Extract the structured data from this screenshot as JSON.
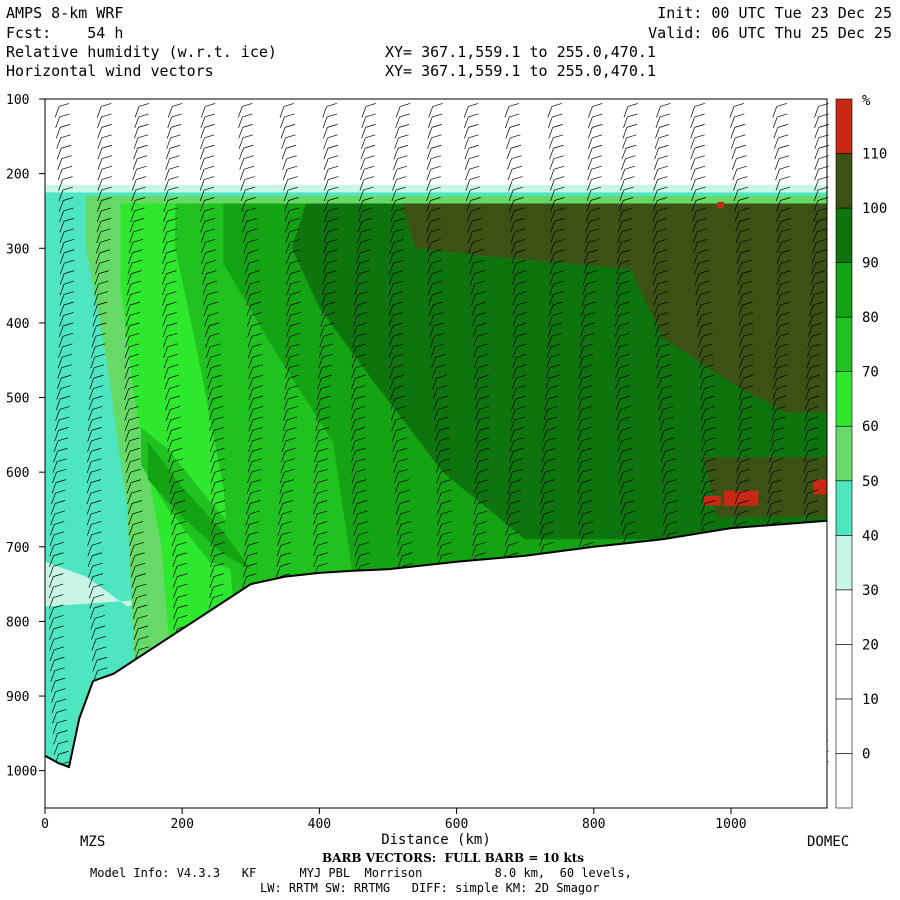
{
  "header": {
    "model": "AMPS 8-km WRF",
    "fcst_label": "Fcst:",
    "fcst_value": "54 h",
    "field1": "Relative humidity (w.r.t. ice)",
    "field2": "Horizontal wind vectors",
    "init": "Init: 00 UTC Tue 23 Dec 25",
    "valid": "Valid: 06 UTC Thu 25 Dec 25",
    "xy1": "XY= 367.1,559.1 to 255.0,470.1",
    "xy2": "XY= 367.1,559.1 to 255.0,470.1"
  },
  "footer": {
    "barb_note": "BARB VECTORS:  FULL BARB = 10 kts",
    "model_info": "Model Info: V4.3.3   KF      MYJ PBL  Morrison          8.0 km,  60 levels,",
    "physics": "LW: RRTM SW: RRTMG   DIFF: simple KM: 2D Smagor"
  },
  "colors": {
    "below_30": "#ffffff",
    "30_40": "#c8f5e6",
    "40_50": "#4de6c0",
    "50_60": "#66d966",
    "60_70": "#2ee82e",
    "70_80": "#1fc21f",
    "80_90": "#13a313",
    "90_100": "#0e740e",
    "100_110": "#3c5214",
    "above_110": "#c82814",
    "terrain": "#ffffff"
  },
  "chart_data": {
    "type": "cross-section",
    "xlabel": "Distance (km)",
    "xlim": [
      0,
      1140
    ],
    "x_ticks": [
      0,
      200,
      400,
      600,
      800,
      1000
    ],
    "x_endpoint_labels": [
      "MZS",
      "DOMEC"
    ],
    "ylim": [
      1050,
      100
    ],
    "y_ticks": [
      100,
      200,
      300,
      400,
      500,
      600,
      700,
      800,
      900,
      1000
    ],
    "colorbar": {
      "unit": "%",
      "levels": [
        0,
        10,
        20,
        30,
        40,
        50,
        60,
        70,
        80,
        90,
        100,
        110
      ],
      "tick_labels": [
        "0",
        "10",
        "20",
        "30",
        "40",
        "50",
        "60",
        "70",
        "80",
        "90",
        "100",
        "110"
      ]
    },
    "terrain_surface": {
      "x": [
        0,
        20,
        35,
        50,
        70,
        100,
        150,
        200,
        250,
        300,
        350,
        400,
        450,
        500,
        600,
        700,
        800,
        900,
        1000,
        1100,
        1140
      ],
      "y": [
        980,
        990,
        995,
        930,
        880,
        870,
        840,
        810,
        780,
        750,
        740,
        735,
        732,
        730,
        720,
        712,
        700,
        690,
        675,
        668,
        665
      ]
    },
    "rh_regions": [
      {
        "label": "100-110",
        "x": [
          500,
          1140
        ],
        "y": [
          230,
          330
        ]
      },
      {
        "label": "90-100",
        "x": [
          600,
          1140
        ],
        "y": [
          330,
          520
        ]
      },
      {
        "label": "100-110",
        "x": [
          900,
          1140
        ],
        "y": [
          400,
          500
        ]
      },
      {
        "label": "above 110",
        "x": [
          990,
          1050
        ],
        "y": [
          620,
          650
        ]
      }
    ]
  }
}
